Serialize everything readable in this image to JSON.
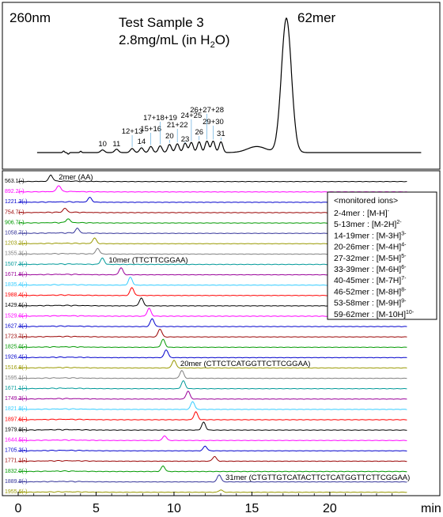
{
  "chart_data": [
    {
      "type": "line",
      "wavelength_label": "260nm",
      "sample_title": "Test Sample 3",
      "concentration_prefix": "2.8mg/mL (in H",
      "concentration_sub": "2",
      "concentration_suffix": "O)",
      "main_peak_label": "62mer",
      "xlim": [
        0,
        25
      ],
      "peaks": [
        {
          "label": "10",
          "x": 4.5,
          "y": 0.02
        },
        {
          "label": "11",
          "x": 5.4,
          "y": 0.025
        },
        {
          "label": "12+13",
          "x": 6.4,
          "y": 0.03
        },
        {
          "label": "14",
          "x": 7.0,
          "y": 0.035
        },
        {
          "label": "15+16",
          "x": 7.6,
          "y": 0.045
        },
        {
          "label": "17+18+19",
          "x": 8.2,
          "y": 0.05
        },
        {
          "label": "20",
          "x": 8.8,
          "y": 0.06
        },
        {
          "label": "21+22",
          "x": 9.3,
          "y": 0.065
        },
        {
          "label": "23",
          "x": 9.8,
          "y": 0.07
        },
        {
          "label": "24+25",
          "x": 10.2,
          "y": 0.075
        },
        {
          "label": "26",
          "x": 10.7,
          "y": 0.08
        },
        {
          "label": "26+27+28",
          "x": 11.2,
          "y": 0.085
        },
        {
          "label": "29+30",
          "x": 11.6,
          "y": 0.085
        },
        {
          "label": "31",
          "x": 12.1,
          "y": 0.08
        },
        {
          "label": "62mer",
          "x": 16.3,
          "y": 1.0
        }
      ]
    },
    {
      "type": "line",
      "xlabel": "min",
      "xlim": [
        0,
        25
      ],
      "xticks": [
        "0",
        "5",
        "10",
        "15",
        "20"
      ],
      "xtick_values": [
        0,
        5,
        10,
        15,
        20
      ],
      "legend_title": "<monitored ions>",
      "legend": [
        {
          "range": "2-4mer",
          "ion": "[M-H]",
          "charge": "-"
        },
        {
          "range": "5-13mer",
          "ion": "[M-2H]",
          "charge": "2-"
        },
        {
          "range": "14-19mer",
          "ion": "[M-3H]",
          "charge": "3-"
        },
        {
          "range": "20-26mer",
          "ion": "[M-4H]",
          "charge": "4-"
        },
        {
          "range": "27-32mer",
          "ion": "[M-5H]",
          "charge": "5-"
        },
        {
          "range": "33-39mer",
          "ion": "[M-6H]",
          "charge": "6-"
        },
        {
          "range": "40-45mer",
          "ion": "[M-7H]",
          "charge": "7-"
        },
        {
          "range": "46-52mer",
          "ion": "[M-8H]",
          "charge": "8-"
        },
        {
          "range": "53-58mer",
          "ion": "[M-9H]",
          "charge": "9-"
        },
        {
          "range": "59-62mer",
          "ion": "[M-10H]",
          "charge": "10-"
        }
      ],
      "annotations": [
        {
          "text": "2mer (AA)",
          "trace": 0,
          "x": 2.3
        },
        {
          "text": "10mer (TTCTTCGGAA)",
          "trace": 8,
          "x": 5.5
        },
        {
          "text": "20mer (CTTCTCATGGTTCTTCGGAA)",
          "trace": 18,
          "x": 10.1
        },
        {
          "text": "31mer (CTGTTGTCATACTTCTCATGGTTCTTCGGAA)",
          "trace": 29,
          "x": 13.0
        }
      ],
      "series": [
        {
          "label": "563.1(-)",
          "color": "#000000",
          "peak_x": 2.1,
          "height": 0.8
        },
        {
          "label": "892.2(-)",
          "color": "#ff00ff",
          "peak_x": 2.6,
          "height": 0.8
        },
        {
          "label": "1221.3(-)",
          "color": "#0000cc",
          "peak_x": 4.6,
          "height": 0.6
        },
        {
          "label": "754.7(-)",
          "color": "#990000",
          "peak_x": 3.0,
          "height": 0.5
        },
        {
          "label": "906.7(-)",
          "color": "#009900",
          "peak_x": 3.2,
          "height": 0.5
        },
        {
          "label": "1058.7(-)",
          "color": "#333399",
          "peak_x": 3.8,
          "height": 0.6
        },
        {
          "label": "1203.2(-)",
          "color": "#999900",
          "peak_x": 4.9,
          "height": 0.7
        },
        {
          "label": "1355.3(-)",
          "color": "#808080",
          "peak_x": 5.1,
          "height": 0.7
        },
        {
          "label": "1507.3(-)",
          "color": "#009999",
          "peak_x": 5.4,
          "height": 0.8
        },
        {
          "label": "1671.8(-)",
          "color": "#990099",
          "peak_x": 6.6,
          "height": 0.9
        },
        {
          "label": "1835.4(-)",
          "color": "#33ccff",
          "peak_x": 7.2,
          "height": 1.0
        },
        {
          "label": "1988.4(-)",
          "color": "#ff0000",
          "peak_x": 7.3,
          "height": 1.0
        },
        {
          "label": "1429.6(-)",
          "color": "#000000",
          "peak_x": 7.9,
          "height": 1.0
        },
        {
          "label": "1529.0(-)",
          "color": "#ff00ff",
          "peak_x": 8.4,
          "height": 1.0
        },
        {
          "label": "1627.3(-)",
          "color": "#0000cc",
          "peak_x": 8.6,
          "height": 1.0
        },
        {
          "label": "1723.7(-)",
          "color": "#990000",
          "peak_x": 9.1,
          "height": 1.0
        },
        {
          "label": "1825.0(-)",
          "color": "#009900",
          "peak_x": 9.3,
          "height": 1.0
        },
        {
          "label": "1926.4(-)",
          "color": "#0000cc",
          "peak_x": 9.5,
          "height": 1.0
        },
        {
          "label": "1516.8(-)",
          "color": "#999900",
          "peak_x": 10.0,
          "height": 1.0
        },
        {
          "label": "1595.1(-)",
          "color": "#808080",
          "peak_x": 10.5,
          "height": 1.0
        },
        {
          "label": "1671.1(-)",
          "color": "#009999",
          "peak_x": 10.6,
          "height": 1.0
        },
        {
          "label": "1749.3(-)",
          "color": "#990099",
          "peak_x": 10.9,
          "height": 1.0
        },
        {
          "label": "1821.9(-)",
          "color": "#33ccff",
          "peak_x": 11.2,
          "height": 1.0
        },
        {
          "label": "1897.6(-)",
          "color": "#ff0000",
          "peak_x": 11.4,
          "height": 1.0
        },
        {
          "label": "1979.9(-)",
          "color": "#000000",
          "peak_x": 11.9,
          "height": 1.0
        },
        {
          "label": "1644.5(-)",
          "color": "#ff00ff",
          "peak_x": 9.4,
          "height": 0.6
        },
        {
          "label": "1705.3(-)",
          "color": "#0000cc",
          "peak_x": 12.0,
          "height": 0.6
        },
        {
          "label": "1771.1(-)",
          "color": "#990000",
          "peak_x": 12.6,
          "height": 0.6
        },
        {
          "label": "1832.0(-)",
          "color": "#009900",
          "peak_x": 9.3,
          "height": 0.7
        },
        {
          "label": "1889.8(-)",
          "color": "#333399",
          "peak_x": 12.9,
          "height": 0.9
        },
        {
          "label": "1955.6(-)",
          "color": "#999900",
          "peak_x": 13.0,
          "height": 0.3
        }
      ]
    }
  ]
}
